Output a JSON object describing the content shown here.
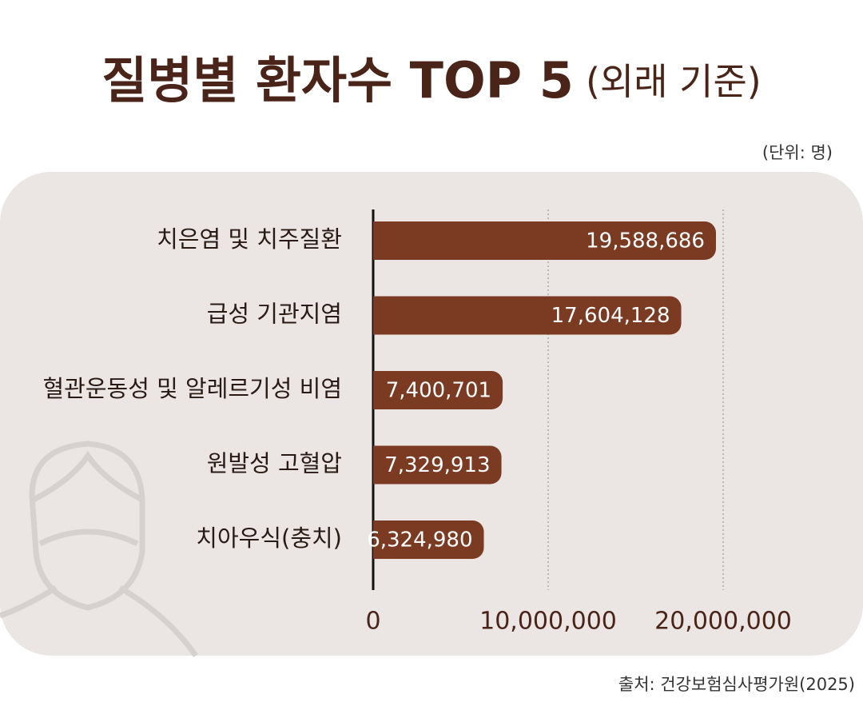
{
  "chart_data": {
    "type": "bar",
    "orientation": "horizontal",
    "title": "질병별 환자수 TOP 5",
    "subtitle": "(외래 기준)",
    "unit": "(단위: 명)",
    "source": "출처: 건강보험심사평가원(2025)",
    "categories": [
      "치은염 및 치주질환",
      "급성 기관지염",
      "혈관운동성 및 알레르기성 비염",
      "원발성 고혈압",
      "치아우식(충치)"
    ],
    "values": [
      19588686,
      17604128,
      7400701,
      7329913,
      6324980
    ],
    "value_labels": [
      "19,588,686",
      "17,604,128",
      "7,400,701",
      "7,329,913",
      "6,324,980"
    ],
    "color": "#7b3a22",
    "xlim": [
      0,
      20000000
    ],
    "xticks": [
      0,
      {
        "value": 10000000,
        "label": "10,000,000"
      },
      {
        "value": 20000000,
        "label": "20,000,000"
      }
    ],
    "grid": true
  }
}
